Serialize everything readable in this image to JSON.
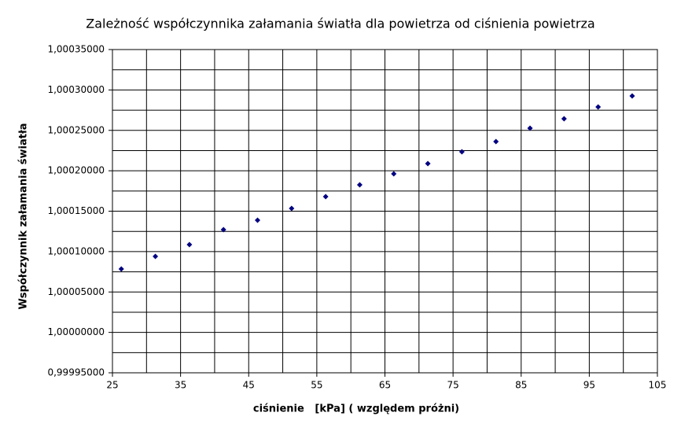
{
  "chart_data": {
    "type": "scatter",
    "title": "Zależność współczynnika załamania światła dla powietrza od ciśnienia powietrza",
    "x_label": "ciśnienie   [kPa] ( względem próżni)",
    "y_label": "Współczynnik załamania światła",
    "color": "#000080",
    "x": [
      26.3,
      31.3,
      36.3,
      41.3,
      46.3,
      51.3,
      56.3,
      61.3,
      66.3,
      71.3,
      76.3,
      81.3,
      86.3,
      91.3,
      96.3,
      101.3
    ],
    "y": [
      1.0000785,
      1.000094,
      1.0001086,
      1.0001271,
      1.0001388,
      1.0001534,
      1.000168,
      1.0001826,
      1.0001962,
      1.0002089,
      1.0002235,
      1.0002361,
      1.0002527,
      1.0002644,
      1.000279,
      1.0002926
    ],
    "xlim": [
      25,
      105
    ],
    "ylim": [
      0.99995,
      1.00035
    ],
    "xticks": [
      25,
      35,
      45,
      55,
      65,
      75,
      85,
      95,
      105
    ],
    "minor_xticks": [
      30,
      40,
      50,
      60,
      70,
      80,
      90,
      100
    ],
    "yticks": [
      {
        "value": 0.99995,
        "label": "0,99995000"
      },
      {
        "value": 1.0,
        "label": "1,00000000"
      },
      {
        "value": 1.00005,
        "label": "1,00005000"
      },
      {
        "value": 1.0001,
        "label": "1,00010000"
      },
      {
        "value": 1.00015,
        "label": "1,00015000"
      },
      {
        "value": 1.0002,
        "label": "1,00020000"
      },
      {
        "value": 1.00025,
        "label": "1,00025000"
      },
      {
        "value": 1.0003,
        "label": "1,00030000"
      },
      {
        "value": 1.00035,
        "label": "1,00035000"
      }
    ],
    "minor_yticks": [
      0.999975,
      1.000025,
      1.000075,
      1.000125,
      1.000175,
      1.000225,
      1.000275,
      1.000325
    ],
    "grid": true
  }
}
